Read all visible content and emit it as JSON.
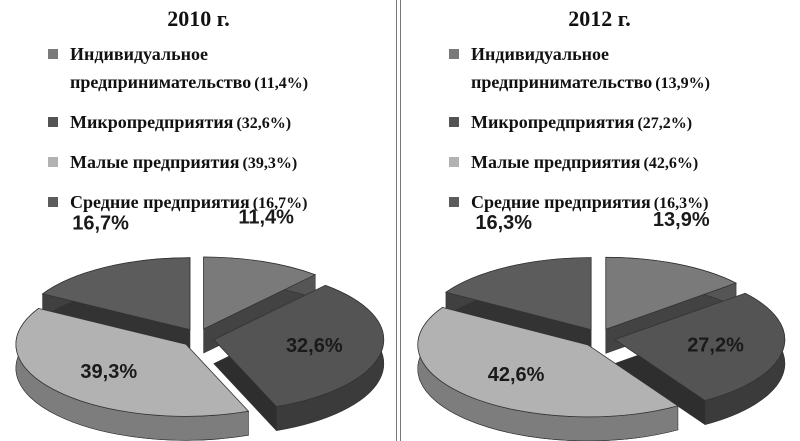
{
  "chart_data": [
    {
      "type": "pie",
      "title": "2010 г.",
      "categories": [
        "Индивидуальное предпринимательство",
        "Микропредприятия",
        "Малые предприятия",
        "Средние предприятия"
      ],
      "values": [
        11.4,
        32.6,
        39.3,
        16.7
      ],
      "value_labels": [
        "11,4%",
        "32,6%",
        "39,3%",
        "16,7%"
      ],
      "legend_value_labels": [
        "(11,4%)",
        "(32,6%)",
        "(39,3%)",
        "(16,7%)"
      ],
      "colors": [
        "#7a7a7a",
        "#545454",
        "#b2b2b2",
        "#5c5c5c"
      ]
    },
    {
      "type": "pie",
      "title": "2012 г.",
      "categories": [
        "Индивидуальное предпринимательство",
        "Микропредприятия",
        "Малые предприятия",
        "Средние предприятия"
      ],
      "values": [
        13.9,
        27.2,
        42.6,
        16.3
      ],
      "value_labels": [
        "13,9%",
        "27,2%",
        "42,6%",
        "16,3%"
      ],
      "legend_value_labels": [
        "(13,9%)",
        "(27,2%)",
        "(42,6%)",
        "(16,3%)"
      ],
      "colors": [
        "#7a7a7a",
        "#545454",
        "#b2b2b2",
        "#5c5c5c"
      ]
    }
  ]
}
